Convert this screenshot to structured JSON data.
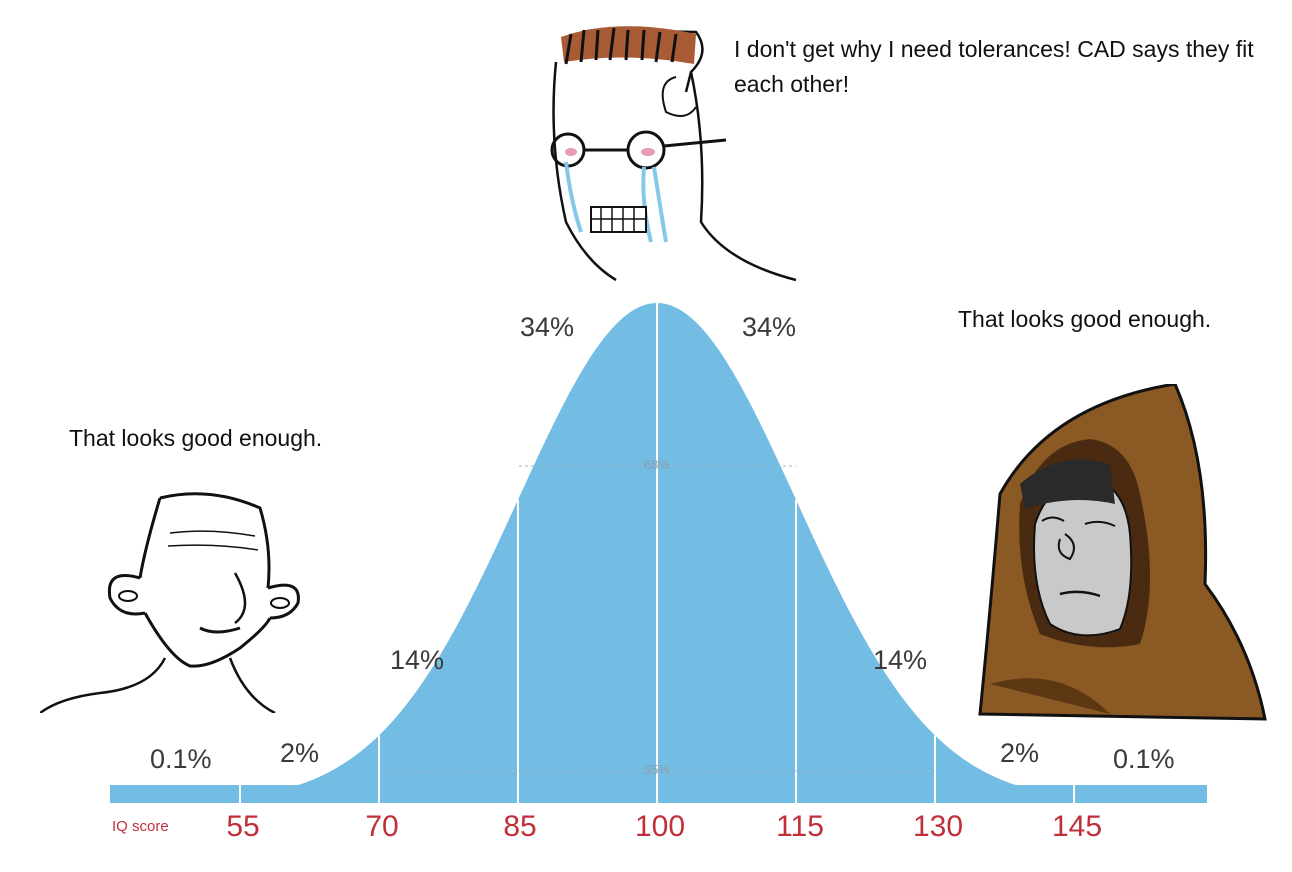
{
  "captions": {
    "top": "I don't get why I need tolerances!  CAD says they fit each other!",
    "left": "That looks good enough.",
    "right": "That looks good enough."
  },
  "percentages": {
    "far_left": "0.1%",
    "left_tail": "2%",
    "left_mid": "14%",
    "left_center": "34%",
    "right_center": "34%",
    "right_mid": "14%",
    "right_tail": "2%",
    "far_right": "0.1%"
  },
  "inner_labels": {
    "sd1": "68%",
    "sd2": "95%"
  },
  "axis": {
    "label": "IQ score",
    "ticks": [
      "55",
      "70",
      "85",
      "100",
      "115",
      "130",
      "145"
    ]
  },
  "colors": {
    "curve": "#73bde4",
    "tick_text": "#c0303a",
    "hood": "#8b5a24"
  },
  "icons": [
    "crying-nerd-wojak-icon",
    "simple-wojak-icon",
    "hooded-monk-wojak-icon"
  ]
}
